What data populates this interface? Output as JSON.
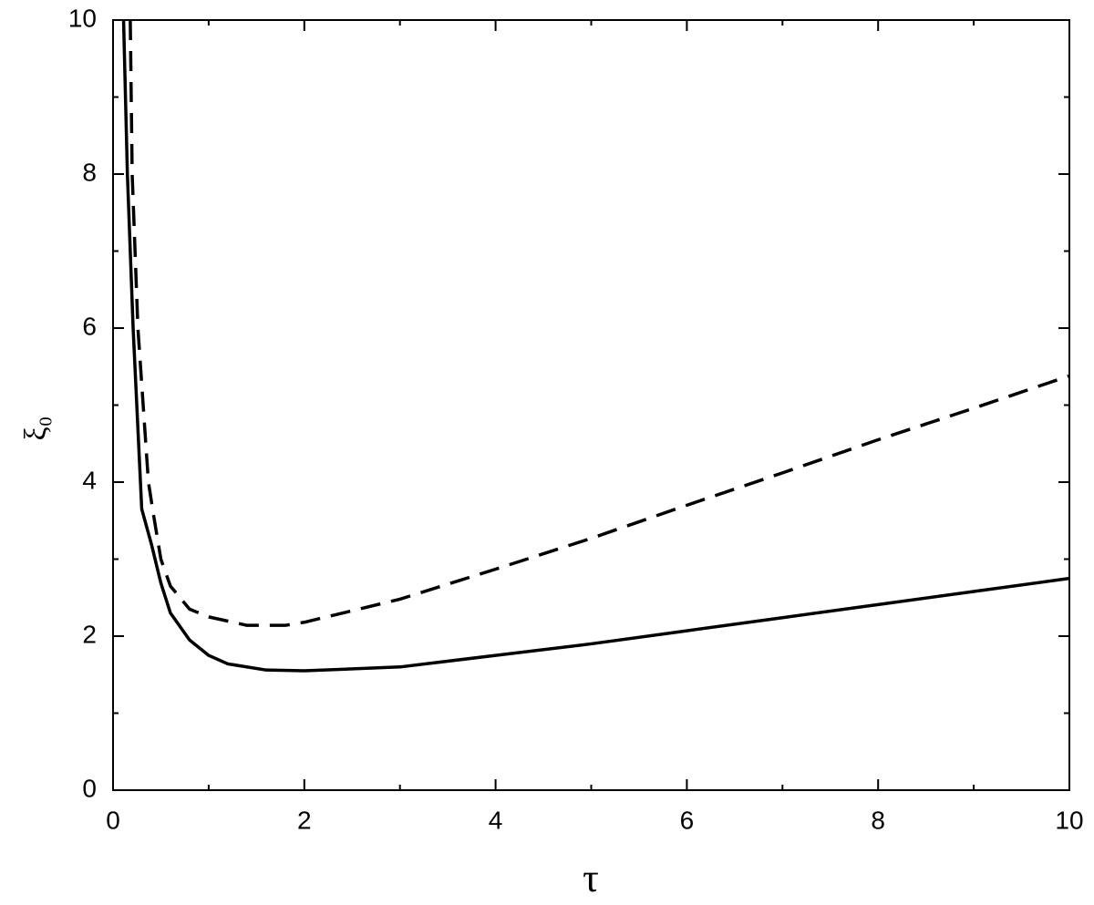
{
  "chart_data": {
    "type": "line",
    "x_label": "τ",
    "y_label": "ξ₀",
    "xlim": [
      0,
      10
    ],
    "xticks": [
      0,
      2,
      4,
      6,
      8,
      10
    ],
    "ylim": [
      0,
      10
    ],
    "yticks": [
      0,
      2,
      4,
      6,
      8,
      10
    ],
    "series": [
      {
        "color": "#000000",
        "dashed": false,
        "x": [
          0.11,
          0.15,
          0.21,
          0.3,
          0.4,
          0.5,
          0.6,
          0.8,
          1.0,
          1.2,
          1.6,
          2.0,
          3.0,
          4.0,
          5.0,
          6.0,
          7.0,
          8.0,
          9.0,
          10.0
        ],
        "values": [
          10,
          8,
          6,
          3.65,
          3.2,
          2.69,
          2.3,
          1.95,
          1.75,
          1.64,
          1.56,
          1.55,
          1.6,
          1.75,
          1.9,
          2.07,
          2.24,
          2.41,
          2.58,
          2.75
        ]
      },
      {
        "color": "#000000",
        "dashed": true,
        "x": [
          0.18,
          0.2,
          0.26,
          0.37,
          0.42,
          0.5,
          0.6,
          0.8,
          1.0,
          1.4,
          1.8,
          2.0,
          3.0,
          4.0,
          5.0,
          6.0,
          7.0,
          8.0,
          9.0,
          10.0
        ],
        "values": [
          10,
          8,
          6,
          4,
          3.6,
          3.0,
          2.65,
          2.35,
          2.25,
          2.14,
          2.14,
          2.18,
          2.48,
          2.87,
          3.27,
          3.7,
          4.12,
          4.55,
          4.96,
          5.38
        ]
      }
    ]
  }
}
